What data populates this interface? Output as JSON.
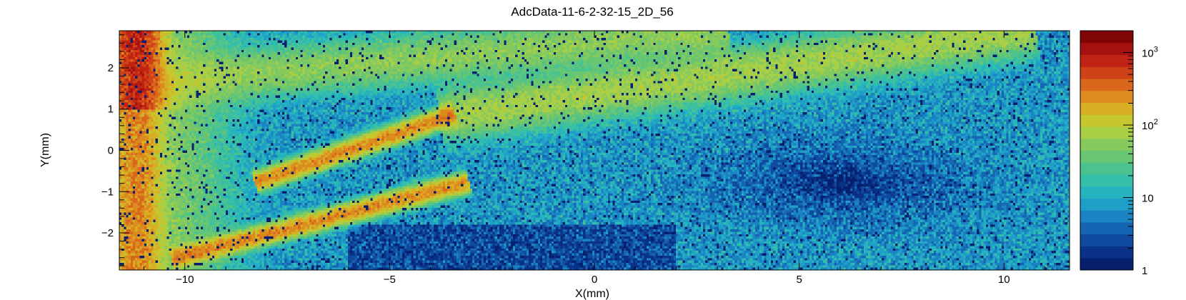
{
  "chart_data": {
    "type": "heatmap",
    "title": "AdcData-11-6-2-32-15_2D_56",
    "xlabel": "X(mm)",
    "ylabel": "Y(mm)",
    "xlim": [
      -11.6,
      11.6
    ],
    "ylim": [
      -2.9,
      2.9
    ],
    "x_ticks": [
      -10,
      -5,
      0,
      5,
      10
    ],
    "x_tick_labels": [
      "−10",
      "−5",
      "0",
      "5",
      "10"
    ],
    "y_ticks": [
      -2,
      -1,
      0,
      1,
      2
    ],
    "y_tick_labels": [
      "−2",
      "−1",
      "0",
      "1",
      "2"
    ],
    "z_scale": "log",
    "z_range": [
      1,
      2000
    ],
    "colorbar_labels": [
      {
        "value": 1,
        "base": "1",
        "exp": ""
      },
      {
        "value": 10,
        "base": "10",
        "exp": ""
      },
      {
        "value": 100,
        "base": "10",
        "exp": "2"
      },
      {
        "value": 1000,
        "base": "10",
        "exp": "3"
      }
    ],
    "colormap": [
      "#06206e",
      "#0a3188",
      "#0f4a9e",
      "#1565b2",
      "#1a83c2",
      "#1f9ec8",
      "#25b3bf",
      "#35bea8",
      "#4cc28e",
      "#68c673",
      "#86c95c",
      "#a8cf45",
      "#c6c72f",
      "#d7ae24",
      "#dc8c1f",
      "#d9661a",
      "#cf4116",
      "#c02314",
      "#a51010",
      "#800606"
    ],
    "features": [
      {
        "kind": "diagonal-band",
        "from": [
          -8.2,
          -0.75
        ],
        "to": [
          -3.5,
          0.85
        ],
        "peak": 300
      },
      {
        "kind": "diagonal-band",
        "from": [
          -10.2,
          -2.6
        ],
        "to": [
          -3.2,
          -0.8
        ],
        "peak": 300
      },
      {
        "kind": "diagonal-band",
        "from": [
          -3.5,
          0.85
        ],
        "to": [
          10.5,
          2.9
        ],
        "peak": 80
      },
      {
        "kind": "diagonal-band",
        "from": [
          -11.0,
          1.6
        ],
        "to": [
          3.0,
          2.9
        ],
        "peak": 60
      },
      {
        "kind": "edge-band",
        "x": -11.2,
        "y_range": [
          -2.9,
          2.9
        ],
        "peak": 900
      },
      {
        "kind": "low-region",
        "center": [
          6.0,
          -0.8
        ],
        "level": 1
      }
    ]
  }
}
